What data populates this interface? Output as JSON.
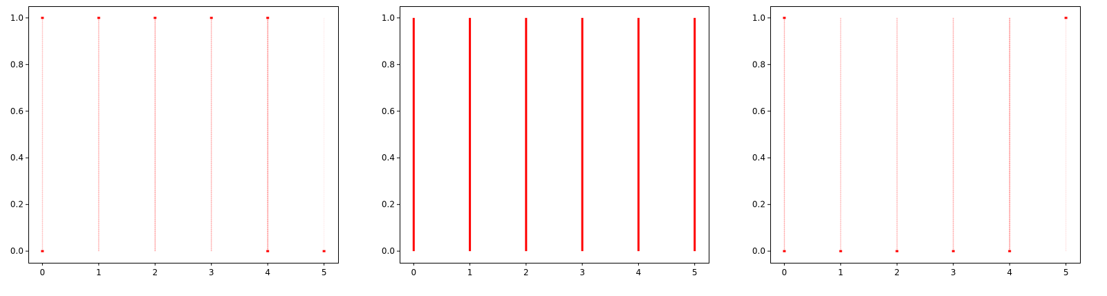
{
  "chart_data": [
    {
      "type": "scatter",
      "title": "",
      "xlabel": "",
      "ylabel": "",
      "xlim": [
        -0.25,
        5.25
      ],
      "ylim": [
        -0.05,
        1.05
      ],
      "x_ticks": [
        0,
        1,
        2,
        3,
        4,
        5
      ],
      "y_ticks": [
        0.0,
        0.2,
        0.4,
        0.6,
        0.8,
        1.0
      ],
      "x_tick_labels": [
        "0",
        "1",
        "2",
        "3",
        "4",
        "5"
      ],
      "y_tick_labels": [
        "0.0",
        "0.2",
        "0.4",
        "0.6",
        "0.8",
        "1.0"
      ],
      "grid": false,
      "marker_color": "#ff0000",
      "series": [
        {
          "x": 0,
          "opacity": 0.14,
          "endpoints": [
            0,
            1
          ]
        },
        {
          "x": 1,
          "opacity": 0.2,
          "endpoints": [
            1
          ]
        },
        {
          "x": 2,
          "opacity": 0.24,
          "endpoints": [
            1
          ]
        },
        {
          "x": 3,
          "opacity": 0.2,
          "endpoints": [
            1
          ]
        },
        {
          "x": 4,
          "opacity": 0.3,
          "endpoints": [
            0,
            1
          ]
        },
        {
          "x": 5,
          "opacity": 0.04,
          "endpoints": [
            0
          ]
        }
      ]
    },
    {
      "type": "scatter",
      "title": "",
      "xlabel": "",
      "ylabel": "",
      "xlim": [
        -0.25,
        5.25
      ],
      "ylim": [
        -0.05,
        1.05
      ],
      "x_ticks": [
        0,
        1,
        2,
        3,
        4,
        5
      ],
      "y_ticks": [
        0.0,
        0.2,
        0.4,
        0.6,
        0.8,
        1.0
      ],
      "x_tick_labels": [
        "0",
        "1",
        "2",
        "3",
        "4",
        "5"
      ],
      "y_tick_labels": [
        "0.0",
        "0.2",
        "0.4",
        "0.6",
        "0.8",
        "1.0"
      ],
      "grid": false,
      "marker_color": "#ff0000",
      "series": [
        {
          "x": 0,
          "opacity": 1,
          "endpoints": []
        },
        {
          "x": 1,
          "opacity": 1,
          "endpoints": []
        },
        {
          "x": 2,
          "opacity": 1,
          "endpoints": []
        },
        {
          "x": 3,
          "opacity": 1,
          "endpoints": []
        },
        {
          "x": 4,
          "opacity": 1,
          "endpoints": []
        },
        {
          "x": 5,
          "opacity": 1,
          "endpoints": []
        }
      ]
    },
    {
      "type": "scatter",
      "title": "",
      "xlabel": "",
      "ylabel": "",
      "xlim": [
        -0.25,
        5.25
      ],
      "ylim": [
        -0.05,
        1.05
      ],
      "x_ticks": [
        0,
        1,
        2,
        3,
        4,
        5
      ],
      "y_ticks": [
        0.0,
        0.2,
        0.4,
        0.6,
        0.8,
        1.0
      ],
      "x_tick_labels": [
        "0",
        "1",
        "2",
        "3",
        "4",
        "5"
      ],
      "y_tick_labels": [
        "0.0",
        "0.2",
        "0.4",
        "0.6",
        "0.8",
        "1.0"
      ],
      "grid": false,
      "marker_color": "#ff0000",
      "series": [
        {
          "x": 0,
          "opacity": 0.2,
          "endpoints": [
            0,
            1
          ]
        },
        {
          "x": 1,
          "opacity": 0.16,
          "endpoints": [
            0
          ]
        },
        {
          "x": 2,
          "opacity": 0.18,
          "endpoints": [
            0
          ]
        },
        {
          "x": 3,
          "opacity": 0.2,
          "endpoints": [
            0
          ]
        },
        {
          "x": 4,
          "opacity": 0.3,
          "endpoints": [
            0
          ]
        },
        {
          "x": 5,
          "opacity": 0.06,
          "endpoints": [
            1
          ]
        }
      ]
    }
  ]
}
